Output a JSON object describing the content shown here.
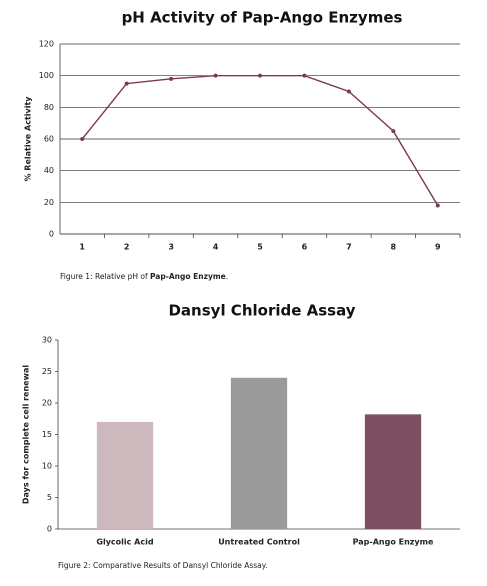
{
  "chart_data": [
    {
      "type": "line",
      "title": "pH Activity of Pap-Ango Enzymes",
      "y_label": "% Relative Activity",
      "categories": [
        "1",
        "2",
        "3",
        "4",
        "5",
        "6",
        "7",
        "8",
        "9"
      ],
      "values": [
        60,
        95,
        98,
        100,
        100,
        100,
        90,
        65,
        18
      ],
      "color": "#7b3a52",
      "ylim": [
        0,
        120
      ],
      "yticks": [
        0,
        20,
        40,
        60,
        80,
        100,
        120
      ],
      "grid": true
    },
    {
      "type": "bar",
      "title": "Dansyl Chloride Assay",
      "y_label": "Days for complete cell renewal",
      "categories": [
        "Glycolic Acid",
        "Untreated Control",
        "Pap-Ango Enzyme"
      ],
      "values": [
        17,
        24,
        18.2
      ],
      "colors": [
        "#cdb8bd",
        "#9a9a9a",
        "#7d4f61"
      ],
      "ylim": [
        0,
        30
      ],
      "yticks": [
        0,
        5,
        10,
        15,
        20,
        25,
        30
      ],
      "grid": false
    }
  ],
  "captions": [
    {
      "text": "Figure 1: Relative pH of ",
      "bold": "Pap-Ango Enzyme",
      "end": "."
    },
    {
      "text": "Figure 2: Comparative Results of Dansyl Chloride Assay."
    }
  ]
}
